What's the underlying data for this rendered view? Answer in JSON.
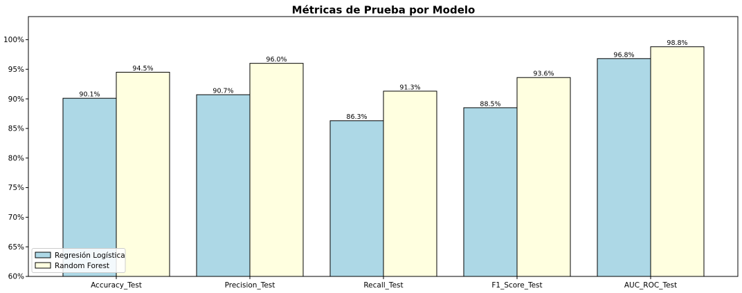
{
  "chart_data": {
    "type": "bar",
    "title": "Métricas de Prueba por Modelo",
    "xlabel": "",
    "ylabel": "",
    "categories": [
      "Accuracy_Test",
      "Precision_Test",
      "Recall_Test",
      "F1_Score_Test",
      "AUC_ROC_Test"
    ],
    "series": [
      {
        "name": "Regresión Logística",
        "color": "#add8e6",
        "values": [
          90.1,
          90.7,
          86.3,
          88.5,
          96.8
        ],
        "labels": [
          "90.1%",
          "90.7%",
          "86.3%",
          "88.5%",
          "96.8%"
        ]
      },
      {
        "name": "Random Forest",
        "color": "#ffffe0",
        "values": [
          94.5,
          96.0,
          91.3,
          93.6,
          98.8
        ],
        "labels": [
          "94.5%",
          "96.0%",
          "91.3%",
          "93.6%",
          "98.8%"
        ]
      }
    ],
    "ylim": [
      60,
      103.9
    ],
    "yticks": [
      60,
      65,
      70,
      75,
      80,
      85,
      90,
      95,
      100
    ],
    "ytick_labels": [
      "60%",
      "65%",
      "70%",
      "75%",
      "80%",
      "85%",
      "90%",
      "95%",
      "100%"
    ],
    "grid": false,
    "legend_position": "lower-left",
    "edge_color": "#000000"
  }
}
